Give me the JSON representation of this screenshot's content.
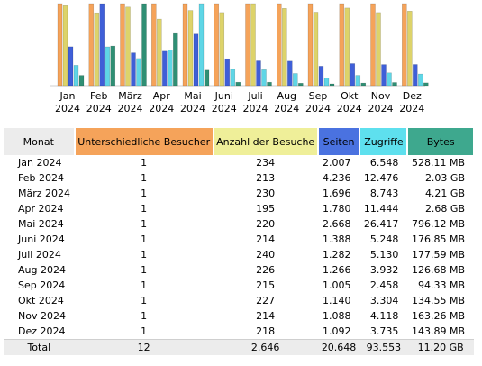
{
  "colors": {
    "visitors": "#f5a35a",
    "visits": "#ddd36a",
    "pages": "#3f5fd8",
    "hits": "#5fd6e6",
    "bytes": "#2f8f74"
  },
  "table": {
    "headers": {
      "month": "Monat",
      "visitors": "Unterschiedliche Besucher",
      "visits": "Anzahl der Besuche",
      "pages": "Seiten",
      "hits": "Zugriffe",
      "bytes": "Bytes"
    },
    "rows": [
      {
        "month": "Jan 2024",
        "visitors": "1",
        "visits": "234",
        "pages": "2.007",
        "hits": "6.548",
        "bytes": "528.11 MB"
      },
      {
        "month": "Feb 2024",
        "visitors": "1",
        "visits": "213",
        "pages": "4.236",
        "hits": "12.476",
        "bytes": "2.03 GB"
      },
      {
        "month": "März 2024",
        "visitors": "1",
        "visits": "230",
        "pages": "1.696",
        "hits": "8.743",
        "bytes": "4.21 GB"
      },
      {
        "month": "Apr 2024",
        "visitors": "1",
        "visits": "195",
        "pages": "1.780",
        "hits": "11.444",
        "bytes": "2.68 GB"
      },
      {
        "month": "Mai 2024",
        "visitors": "1",
        "visits": "220",
        "pages": "2.668",
        "hits": "26.417",
        "bytes": "796.12 MB"
      },
      {
        "month": "Juni 2024",
        "visitors": "1",
        "visits": "214",
        "pages": "1.388",
        "hits": "5.248",
        "bytes": "176.85 MB"
      },
      {
        "month": "Juli 2024",
        "visitors": "1",
        "visits": "240",
        "pages": "1.282",
        "hits": "5.130",
        "bytes": "177.59 MB"
      },
      {
        "month": "Aug 2024",
        "visitors": "1",
        "visits": "226",
        "pages": "1.266",
        "hits": "3.932",
        "bytes": "126.68 MB"
      },
      {
        "month": "Sep 2024",
        "visitors": "1",
        "visits": "215",
        "pages": "1.005",
        "hits": "2.458",
        "bytes": "94.33 MB"
      },
      {
        "month": "Okt 2024",
        "visitors": "1",
        "visits": "227",
        "pages": "1.140",
        "hits": "3.304",
        "bytes": "134.55 MB"
      },
      {
        "month": "Nov 2024",
        "visitors": "1",
        "visits": "214",
        "pages": "1.088",
        "hits": "4.118",
        "bytes": "163.26 MB"
      },
      {
        "month": "Dez 2024",
        "visitors": "1",
        "visits": "218",
        "pages": "1.092",
        "hits": "3.735",
        "bytes": "143.89 MB"
      }
    ],
    "total": {
      "month": "Total",
      "visitors": "12",
      "visits": "2.646",
      "pages": "20.648",
      "hits": "93.553",
      "bytes": "11.20 GB"
    }
  },
  "chart_data": {
    "type": "bar",
    "categories": [
      [
        "Jan",
        "2024"
      ],
      [
        "Feb",
        "2024"
      ],
      [
        "März",
        "2024"
      ],
      [
        "Apr",
        "2024"
      ],
      [
        "Mai",
        "2024"
      ],
      [
        "Juni",
        "2024"
      ],
      [
        "Juli",
        "2024"
      ],
      [
        "Aug",
        "2024"
      ],
      [
        "Sep",
        "2024"
      ],
      [
        "Okt",
        "2024"
      ],
      [
        "Nov",
        "2024"
      ],
      [
        "Dez",
        "2024"
      ]
    ],
    "series": [
      {
        "key": "visitors",
        "values": [
          1,
          1,
          1,
          1,
          1,
          1,
          1,
          1,
          1,
          1,
          1,
          1
        ]
      },
      {
        "key": "visits",
        "values": [
          234,
          213,
          230,
          195,
          220,
          214,
          240,
          226,
          215,
          227,
          214,
          218
        ]
      },
      {
        "key": "pages",
        "values": [
          2007,
          4236,
          1696,
          1780,
          2668,
          1388,
          1282,
          1266,
          1005,
          1140,
          1088,
          1092
        ]
      },
      {
        "key": "hits",
        "values": [
          6548,
          12476,
          8743,
          11444,
          26417,
          5248,
          5130,
          3932,
          2458,
          3304,
          4118,
          3735
        ]
      },
      {
        "key": "bytes_mb",
        "values": [
          528.11,
          2030,
          4210,
          2680,
          796.12,
          176.85,
          177.59,
          126.68,
          94.33,
          134.55,
          163.26,
          143.89
        ]
      }
    ],
    "title": "",
    "xlabel": "",
    "ylabel": "",
    "grid": false,
    "legend": "none"
  }
}
